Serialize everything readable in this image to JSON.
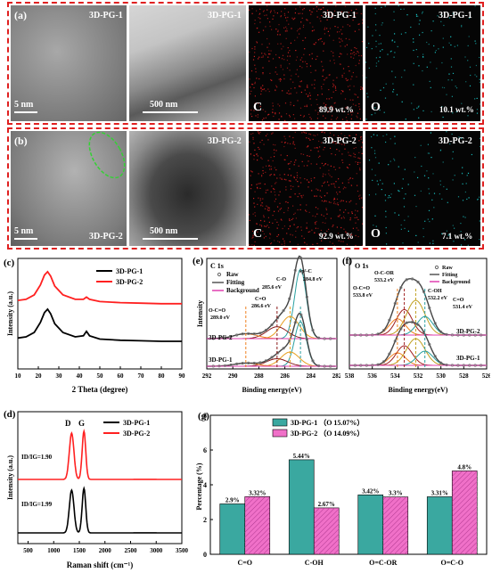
{
  "micrographs": {
    "row_a": {
      "panel_letter": "(a)",
      "sample": "3D-PG-1",
      "tiles": [
        {
          "label": "3D-PG-1",
          "scale": "5 nm"
        },
        {
          "label": "3D-PG-1",
          "scale": "500 nm"
        },
        {
          "label": "3D-PG-1",
          "element": "C",
          "content": "89.9 wt.%",
          "color": "#d42020"
        },
        {
          "label": "3D-PG-1",
          "element": "O",
          "content": "10.1 wt.%",
          "color": "#19c8c8"
        }
      ]
    },
    "row_b": {
      "panel_letter": "(b)",
      "sample": "3D-PG-2",
      "tiles": [
        {
          "label": "3D-PG-2",
          "scale": "5 nm"
        },
        {
          "label": "3D-PG-2",
          "scale": "500 nm"
        },
        {
          "label": "3D-PG-2",
          "element": "C",
          "content": "92.9 wt.%",
          "color": "#d42020"
        },
        {
          "label": "3D-PG-2",
          "element": "O",
          "content": "7.1 wt.%",
          "color": "#19c8c8"
        }
      ]
    }
  },
  "colors": {
    "series1": "#000000",
    "series2": "#ff2020",
    "bar1": "#3aa8a0",
    "bar2": "#f070c8",
    "dash": "#e02020"
  },
  "chart_data": [
    {
      "panel": "(c)",
      "type": "line",
      "xlabel": "2 Theta (degree)",
      "ylabel": "Intensity (a.u.)",
      "xlim": [
        10,
        90
      ],
      "xticks": [
        10,
        20,
        30,
        40,
        50,
        60,
        70,
        80,
        90
      ],
      "legend": [
        "3D-PG-1",
        "3D-PG-2"
      ],
      "legend_position": "top-right",
      "series": [
        {
          "name": "3D-PG-1",
          "x": [
            10,
            14,
            18,
            21,
            23,
            24.5,
            26,
            28,
            32,
            38,
            42,
            43.5,
            45,
            50,
            60,
            70,
            80,
            90
          ],
          "y": [
            0.28,
            0.29,
            0.33,
            0.42,
            0.51,
            0.54,
            0.5,
            0.41,
            0.33,
            0.29,
            0.3,
            0.34,
            0.3,
            0.27,
            0.26,
            0.255,
            0.25,
            0.25
          ]
        },
        {
          "name": "3D-PG-2",
          "x": [
            10,
            14,
            18,
            21,
            23,
            24.5,
            26,
            28,
            32,
            38,
            42,
            43.5,
            45,
            50,
            60,
            70,
            80,
            90
          ],
          "y": [
            0.62,
            0.63,
            0.67,
            0.76,
            0.85,
            0.88,
            0.84,
            0.75,
            0.67,
            0.63,
            0.63,
            0.65,
            0.63,
            0.61,
            0.6,
            0.595,
            0.59,
            0.59
          ]
        }
      ]
    },
    {
      "panel": "(e)",
      "type": "line",
      "title": "C 1s",
      "xlabel": "Binding energy(eV)",
      "ylabel": "Intensity",
      "xlim": [
        292,
        282
      ],
      "xticks": [
        292,
        290,
        288,
        286,
        284,
        282
      ],
      "legend": [
        "Raw",
        "Fitting",
        "Background"
      ],
      "samples": [
        "3D-PG-2",
        "3D-PG-1"
      ],
      "peaks": [
        {
          "label": "sp²-C",
          "position": "284.8 eV"
        },
        {
          "label": "C-O",
          "position": "285.6 eV"
        },
        {
          "label": "C=O",
          "position": "286.6 eV"
        },
        {
          "label": "O-C=O",
          "position": "289.0 eV"
        }
      ]
    },
    {
      "panel": "(f)",
      "type": "line",
      "title": "O 1s",
      "xlabel": "Binding energy(eV)",
      "xlim": [
        538,
        526
      ],
      "xticks": [
        538,
        536,
        534,
        532,
        530,
        528,
        526
      ],
      "legend": [
        "Raw",
        "Fitting",
        "Background"
      ],
      "samples": [
        "3D-PG-2",
        "3D-PG-1"
      ],
      "peaks": [
        {
          "label": "O-C-OR",
          "position": "533.2 eV"
        },
        {
          "label": "O-C=O",
          "position": "533.8 eV"
        },
        {
          "label": "C-OH",
          "position": "532.2 eV"
        },
        {
          "label": "C=O",
          "position": "531.4 eV"
        }
      ]
    },
    {
      "panel": "(d)",
      "type": "line",
      "xlabel": "Raman shift (cm⁻¹)",
      "ylabel": "Intensity (a.u.)",
      "xlim": [
        300,
        3500
      ],
      "xticks": [
        500,
        1000,
        1500,
        2000,
        2500,
        3000,
        3500
      ],
      "legend": [
        "3D-PG-1",
        "3D-PG-2"
      ],
      "peak_labels": [
        "D",
        "G"
      ],
      "ratios": [
        {
          "sample": "3D-PG-2",
          "text": "ID/IG=1.90"
        },
        {
          "sample": "3D-PG-1",
          "text": "ID/IG=1.99"
        }
      ]
    },
    {
      "panel": "(g)",
      "type": "bar",
      "ylabel": "Percentage (%)",
      "ylim": [
        0,
        8
      ],
      "yticks": [
        0,
        2,
        4,
        6,
        8
      ],
      "categories": [
        "C=O",
        "C-OH",
        "O=C-OR",
        "O=C-O"
      ],
      "legend_position": "top-center",
      "series": [
        {
          "name": "3D-PG-1 （O 15.07%）",
          "values": [
            2.9,
            5.44,
            3.42,
            3.31
          ],
          "labels": [
            "2.9%",
            "5.44%",
            "3.42%",
            "3.31%"
          ]
        },
        {
          "name": "3D-PG-2 （O 14.09%）",
          "values": [
            3.32,
            2.67,
            3.3,
            4.8
          ],
          "labels": [
            "3.32%",
            "2.67%",
            "3.3%",
            "4.8%"
          ]
        }
      ]
    }
  ]
}
